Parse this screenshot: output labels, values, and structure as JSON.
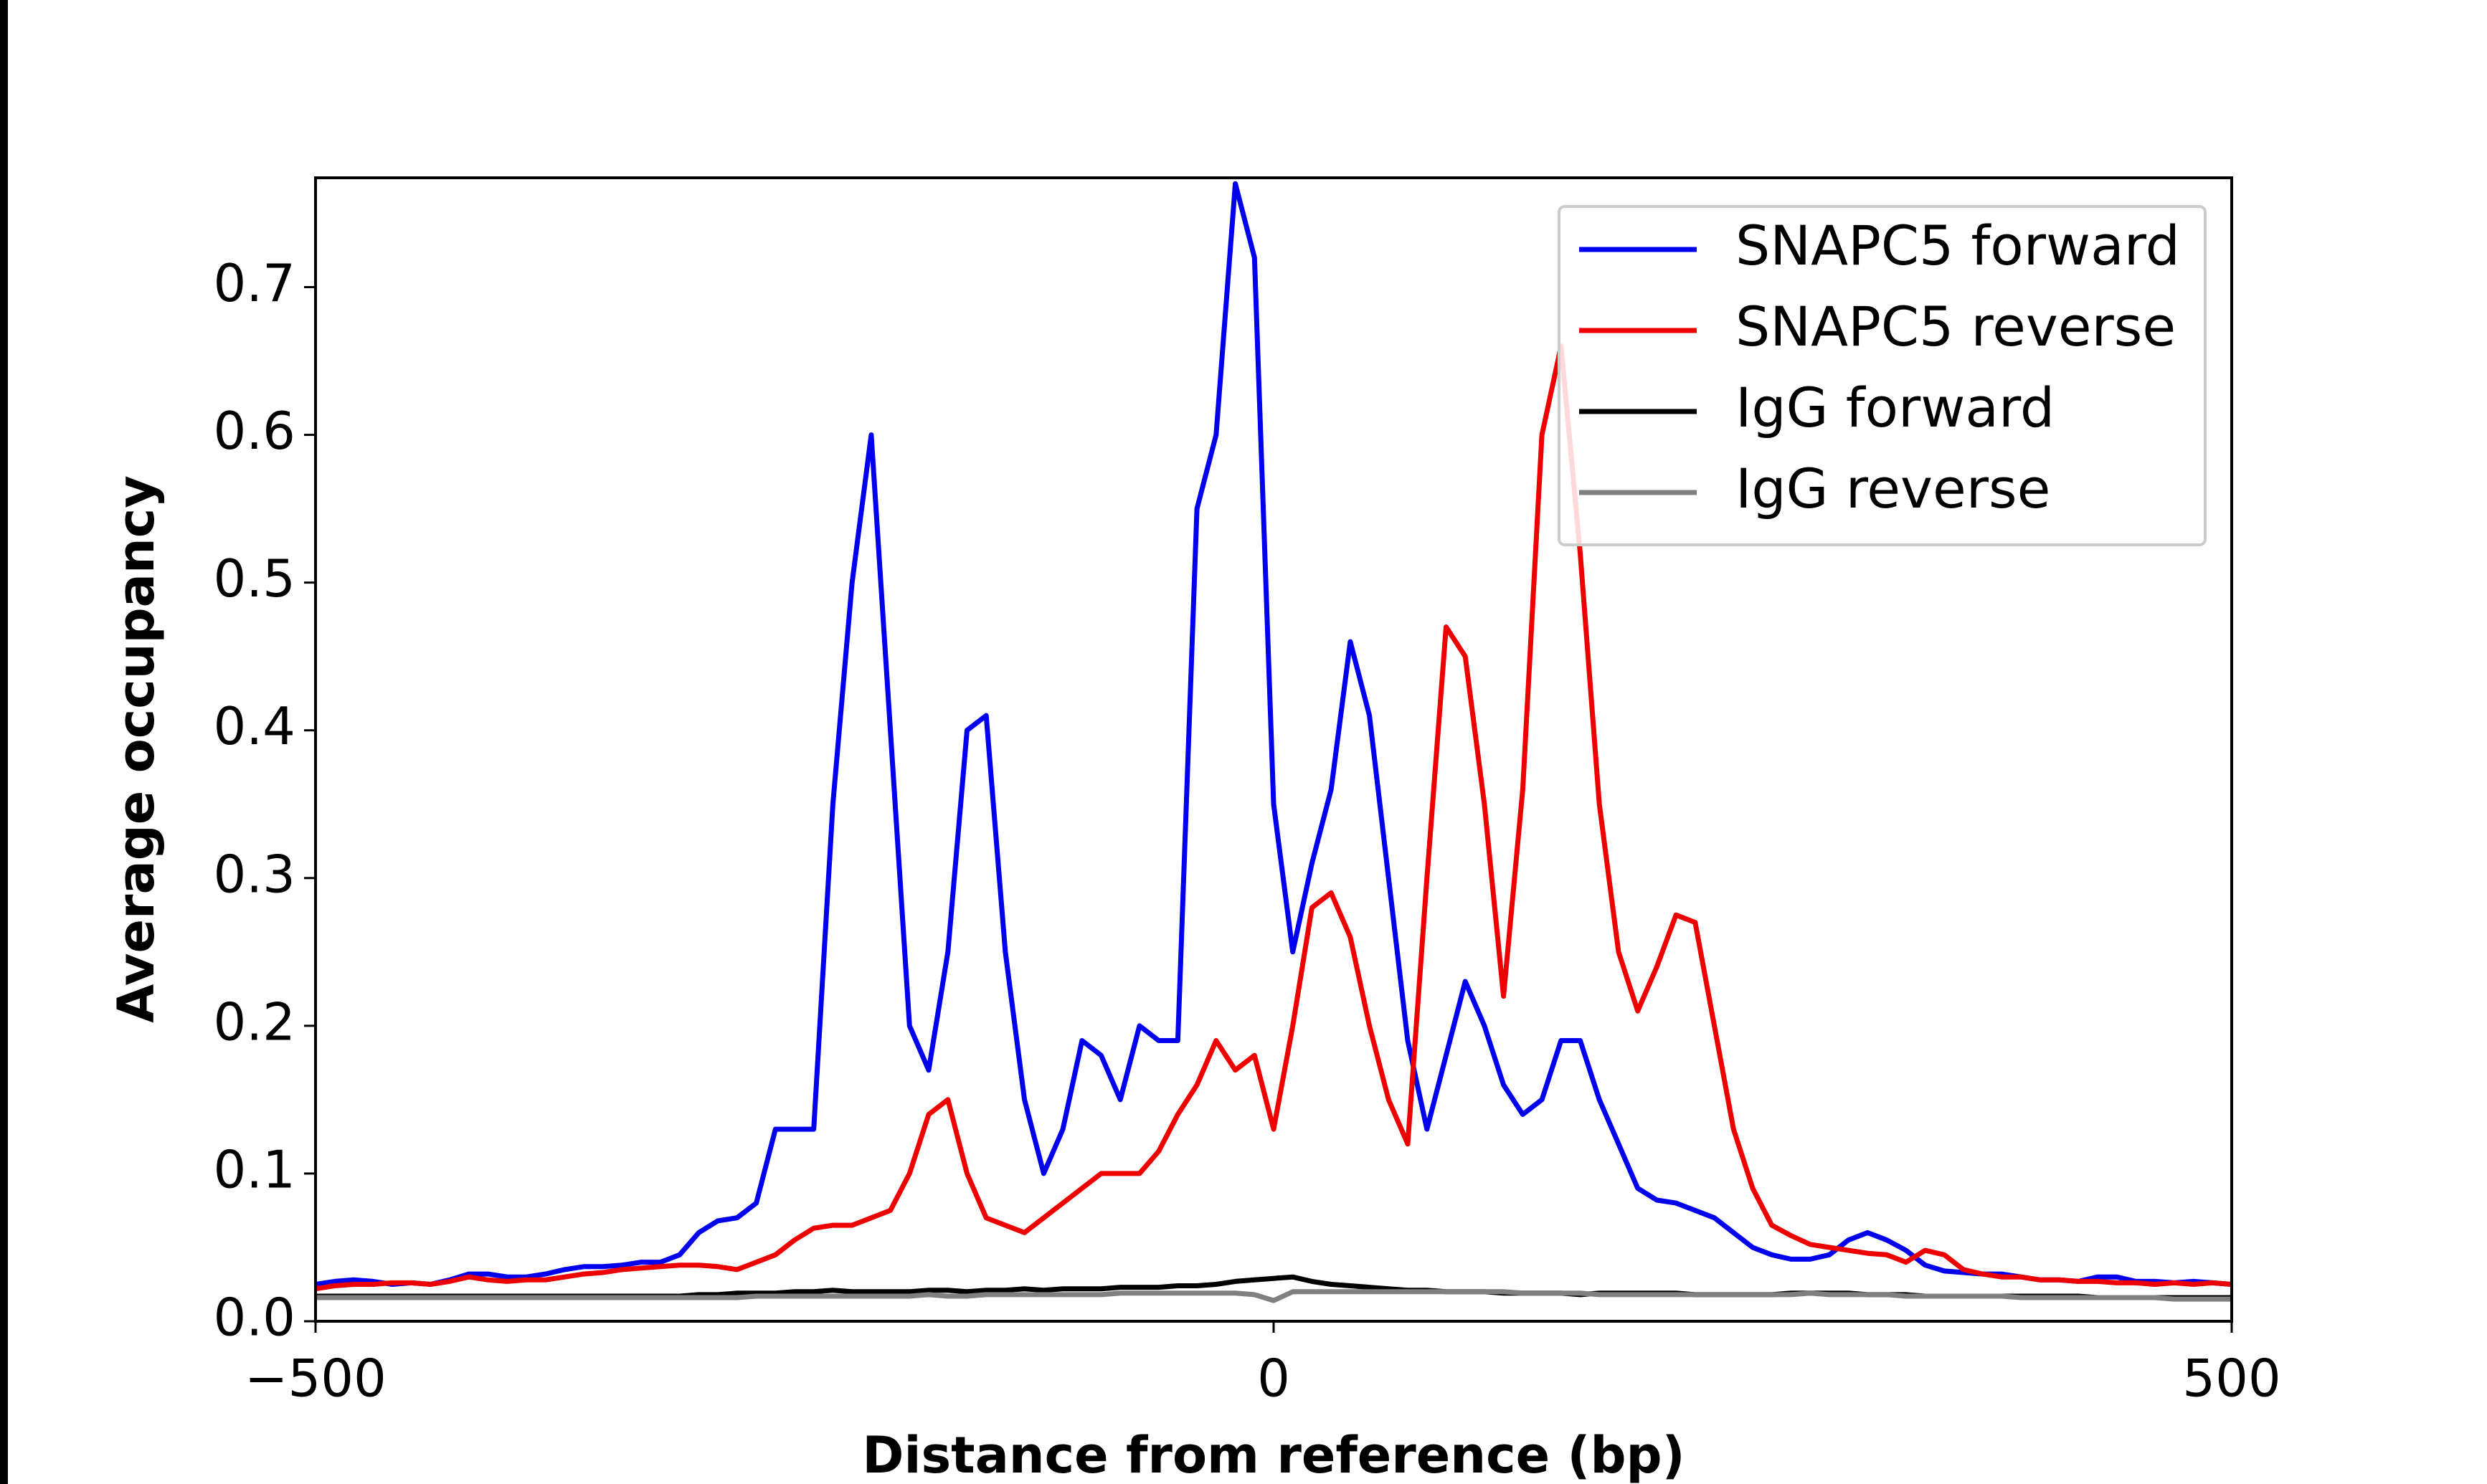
{
  "chart_data": {
    "type": "line",
    "xlabel": "Distance from reference (bp)",
    "ylabel": "Average occupancy",
    "xlim": [
      -500,
      500
    ],
    "ylim": [
      0,
      0.774
    ],
    "xticks": [
      {
        "value": -500,
        "label": "−500"
      },
      0,
      500
    ],
    "yticks": [
      {
        "value": 0,
        "label": "0.0"
      },
      0.1,
      0.2,
      0.3,
      0.4,
      0.5,
      0.6,
      0.7
    ],
    "legend": "upper right",
    "x": [
      -500,
      -490,
      -480,
      -470,
      -460,
      -450,
      -440,
      -430,
      -420,
      -410,
      -400,
      -390,
      -380,
      -370,
      -360,
      -350,
      -340,
      -330,
      -320,
      -310,
      -300,
      -290,
      -280,
      -270,
      -260,
      -250,
      -240,
      -230,
      -220,
      -210,
      -200,
      -190,
      -180,
      -170,
      -160,
      -150,
      -140,
      -130,
      -120,
      -110,
      -100,
      -90,
      -80,
      -70,
      -60,
      -50,
      -40,
      -30,
      -20,
      -10,
      0,
      10,
      20,
      30,
      40,
      50,
      60,
      70,
      80,
      90,
      100,
      110,
      120,
      130,
      140,
      150,
      160,
      170,
      180,
      190,
      200,
      210,
      220,
      230,
      240,
      250,
      260,
      270,
      280,
      290,
      300,
      310,
      320,
      330,
      340,
      350,
      360,
      370,
      380,
      390,
      400,
      410,
      420,
      430,
      440,
      450,
      460,
      470,
      480,
      490,
      500
    ],
    "series": [
      {
        "name": "SNAPC5 forward",
        "color": "#0000ee",
        "values": [
          0.025,
          0.027,
          0.028,
          0.027,
          0.025,
          0.026,
          0.025,
          0.028,
          0.032,
          0.032,
          0.03,
          0.03,
          0.032,
          0.035,
          0.037,
          0.037,
          0.038,
          0.04,
          0.04,
          0.045,
          0.06,
          0.068,
          0.07,
          0.08,
          0.13,
          0.13,
          0.13,
          0.35,
          0.5,
          0.6,
          0.4,
          0.2,
          0.17,
          0.25,
          0.4,
          0.41,
          0.25,
          0.15,
          0.1,
          0.13,
          0.19,
          0.18,
          0.15,
          0.2,
          0.19,
          0.19,
          0.55,
          0.6,
          0.77,
          0.72,
          0.35,
          0.25,
          0.31,
          0.36,
          0.46,
          0.41,
          0.3,
          0.19,
          0.13,
          0.18,
          0.23,
          0.2,
          0.16,
          0.14,
          0.15,
          0.19,
          0.19,
          0.15,
          0.12,
          0.09,
          0.082,
          0.08,
          0.075,
          0.07,
          0.06,
          0.05,
          0.045,
          0.042,
          0.042,
          0.045,
          0.055,
          0.06,
          0.055,
          0.048,
          0.038,
          0.034,
          0.033,
          0.032,
          0.032,
          0.03,
          0.028,
          0.028,
          0.027,
          0.03,
          0.03,
          0.027,
          0.027,
          0.026,
          0.027,
          0.026,
          0.025
        ]
      },
      {
        "name": "SNAPC5 reverse",
        "color": "#ee0000",
        "values": [
          0.022,
          0.024,
          0.025,
          0.025,
          0.026,
          0.026,
          0.025,
          0.027,
          0.03,
          0.028,
          0.027,
          0.028,
          0.028,
          0.03,
          0.032,
          0.033,
          0.035,
          0.036,
          0.037,
          0.038,
          0.038,
          0.037,
          0.035,
          0.04,
          0.045,
          0.055,
          0.063,
          0.065,
          0.065,
          0.07,
          0.075,
          0.1,
          0.14,
          0.15,
          0.1,
          0.07,
          0.065,
          0.06,
          0.07,
          0.08,
          0.09,
          0.1,
          0.1,
          0.1,
          0.115,
          0.14,
          0.16,
          0.19,
          0.17,
          0.18,
          0.13,
          0.2,
          0.28,
          0.29,
          0.26,
          0.2,
          0.15,
          0.12,
          0.3,
          0.47,
          0.45,
          0.35,
          0.22,
          0.36,
          0.6,
          0.66,
          0.52,
          0.35,
          0.25,
          0.21,
          0.24,
          0.275,
          0.27,
          0.2,
          0.13,
          0.09,
          0.065,
          0.058,
          0.052,
          0.05,
          0.048,
          0.046,
          0.045,
          0.04,
          0.048,
          0.045,
          0.035,
          0.032,
          0.03,
          0.03,
          0.028,
          0.028,
          0.027,
          0.027,
          0.026,
          0.026,
          0.025,
          0.026,
          0.025,
          0.026,
          0.025
        ]
      },
      {
        "name": "IgG forward",
        "color": "#000000",
        "values": [
          0.017,
          0.017,
          0.017,
          0.017,
          0.017,
          0.017,
          0.017,
          0.017,
          0.017,
          0.017,
          0.017,
          0.017,
          0.017,
          0.017,
          0.017,
          0.017,
          0.017,
          0.017,
          0.017,
          0.017,
          0.018,
          0.018,
          0.019,
          0.019,
          0.019,
          0.02,
          0.02,
          0.021,
          0.02,
          0.02,
          0.02,
          0.02,
          0.021,
          0.021,
          0.02,
          0.021,
          0.021,
          0.022,
          0.021,
          0.022,
          0.022,
          0.022,
          0.023,
          0.023,
          0.023,
          0.024,
          0.024,
          0.025,
          0.027,
          0.028,
          0.029,
          0.03,
          0.027,
          0.025,
          0.024,
          0.023,
          0.022,
          0.021,
          0.021,
          0.02,
          0.02,
          0.02,
          0.019,
          0.019,
          0.019,
          0.019,
          0.018,
          0.019,
          0.019,
          0.019,
          0.019,
          0.019,
          0.018,
          0.018,
          0.018,
          0.018,
          0.018,
          0.019,
          0.019,
          0.019,
          0.019,
          0.018,
          0.018,
          0.018,
          0.017,
          0.017,
          0.017,
          0.017,
          0.017,
          0.017,
          0.017,
          0.017,
          0.017,
          0.016,
          0.016,
          0.016,
          0.016,
          0.016,
          0.016,
          0.016,
          0.016
        ]
      },
      {
        "name": "IgG reverse",
        "color": "#808080",
        "values": [
          0.016,
          0.016,
          0.016,
          0.016,
          0.016,
          0.016,
          0.016,
          0.016,
          0.016,
          0.016,
          0.016,
          0.016,
          0.016,
          0.016,
          0.016,
          0.016,
          0.016,
          0.016,
          0.016,
          0.016,
          0.016,
          0.016,
          0.016,
          0.017,
          0.017,
          0.017,
          0.017,
          0.017,
          0.017,
          0.017,
          0.017,
          0.017,
          0.018,
          0.017,
          0.017,
          0.018,
          0.018,
          0.018,
          0.018,
          0.018,
          0.018,
          0.018,
          0.019,
          0.019,
          0.019,
          0.019,
          0.019,
          0.019,
          0.019,
          0.018,
          0.014,
          0.02,
          0.02,
          0.02,
          0.02,
          0.02,
          0.02,
          0.02,
          0.02,
          0.02,
          0.02,
          0.02,
          0.02,
          0.019,
          0.019,
          0.019,
          0.019,
          0.018,
          0.018,
          0.018,
          0.018,
          0.018,
          0.018,
          0.018,
          0.018,
          0.018,
          0.018,
          0.018,
          0.019,
          0.018,
          0.018,
          0.018,
          0.018,
          0.017,
          0.017,
          0.017,
          0.017,
          0.017,
          0.017,
          0.016,
          0.016,
          0.016,
          0.016,
          0.016,
          0.016,
          0.016,
          0.016,
          0.015,
          0.015,
          0.015,
          0.015
        ]
      }
    ]
  }
}
